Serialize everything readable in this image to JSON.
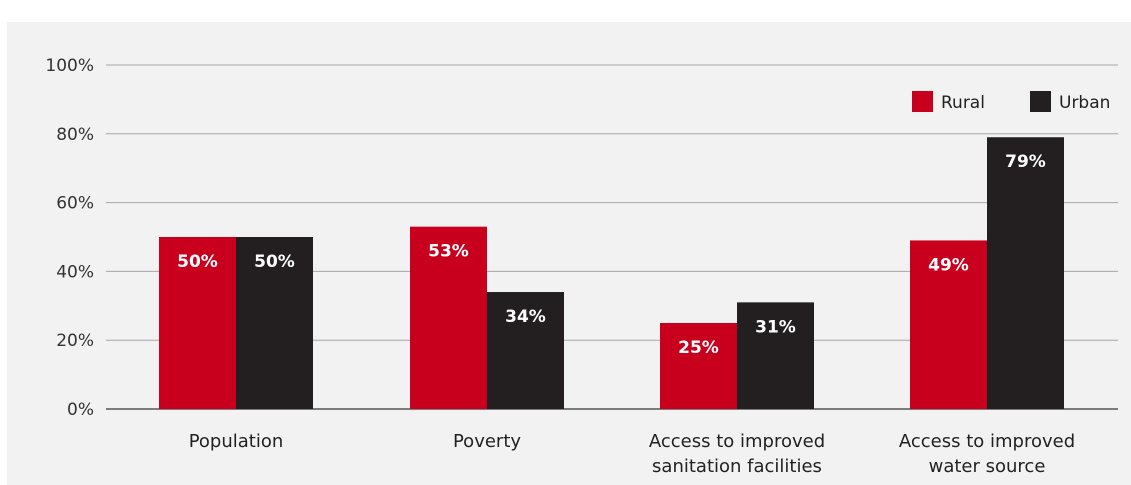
{
  "chart_data": {
    "type": "bar",
    "title": "",
    "xlabel": "",
    "ylabel": "",
    "ylim": [
      0,
      100
    ],
    "yticks": [
      "0%",
      "20%",
      "40%",
      "60%",
      "80%",
      "100%"
    ],
    "ytick_values": [
      0,
      20,
      40,
      60,
      80,
      100
    ],
    "categories": [
      [
        "Population"
      ],
      [
        "Poverty"
      ],
      [
        "Access to improved",
        "sanitation facilities"
      ],
      [
        "Access to improved",
        "water source"
      ]
    ],
    "series": [
      {
        "name": "Rural",
        "color": "#c8001e",
        "values": [
          50,
          53,
          25,
          49
        ],
        "labels": [
          "50%",
          "53%",
          "25%",
          "49%"
        ]
      },
      {
        "name": "Urban",
        "color": "#231f20",
        "values": [
          50,
          34,
          31,
          79
        ],
        "labels": [
          "50%",
          "34%",
          "31%",
          "79%"
        ]
      }
    ],
    "legend_position": "top-right",
    "grid": true
  }
}
